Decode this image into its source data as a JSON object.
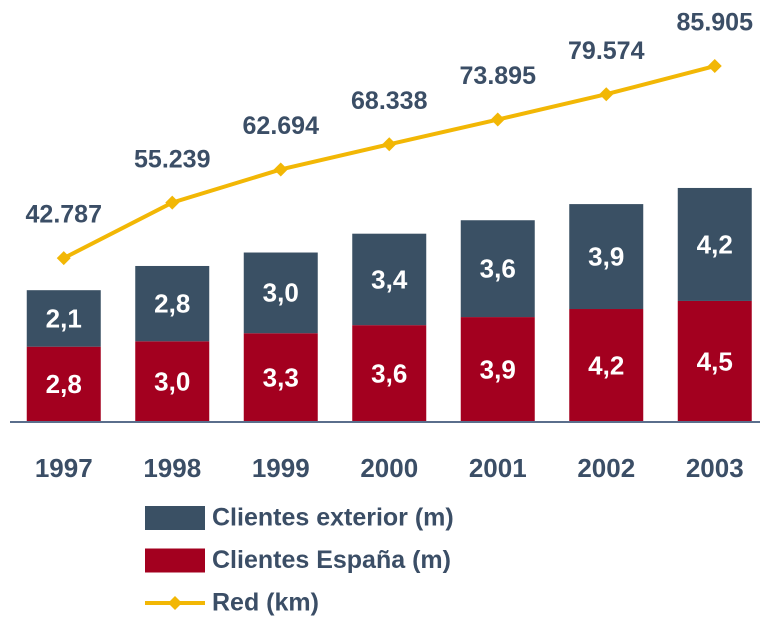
{
  "chart_data": {
    "type": "bar",
    "stacked": true,
    "categories": [
      "1997",
      "1998",
      "1999",
      "2000",
      "2001",
      "2002",
      "2003"
    ],
    "series": [
      {
        "name": "Clientes exterior (m)",
        "color": "#3a5064",
        "values": [
          2.1,
          2.8,
          3.0,
          3.4,
          3.6,
          3.9,
          4.2
        ],
        "value_labels": [
          "2,1",
          "2,8",
          "3,0",
          "3,4",
          "3,6",
          "3,9",
          "4,2"
        ]
      },
      {
        "name": "Clientes España (m)",
        "color": "#a3001f",
        "values": [
          2.8,
          3.0,
          3.3,
          3.6,
          3.9,
          4.2,
          4.5
        ],
        "value_labels": [
          "2,8",
          "3,0",
          "3,3",
          "3,6",
          "3,9",
          "4,2",
          "4,5"
        ]
      },
      {
        "name": "Red (km)",
        "type": "line",
        "axis": "y2",
        "color": "#f2b705",
        "values": [
          42787,
          55239,
          62694,
          68338,
          73895,
          79574,
          85905
        ],
        "value_labels": [
          "42.787",
          "55.239",
          "62.694",
          "68.338",
          "73.895",
          "79.574",
          "85.905"
        ]
      }
    ],
    "ylim": [
      0,
      14.2
    ],
    "y2lim": [
      6000,
      91750
    ]
  }
}
